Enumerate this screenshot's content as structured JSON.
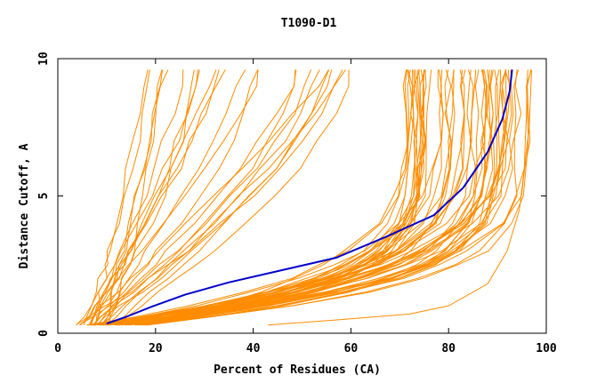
{
  "chart_data": {
    "type": "line",
    "title": "T1090-D1",
    "xlabel": "Percent of Residues (CA)",
    "ylabel": "Distance Cutoff, A",
    "xlim": [
      0,
      100
    ],
    "ylim": [
      0,
      10
    ],
    "xticks": [
      0,
      20,
      40,
      60,
      80,
      100
    ],
    "yticks": [
      0,
      5,
      10
    ],
    "grid": false,
    "legend": "none",
    "colors": {
      "background": "#ffffff",
      "axes": "#000000",
      "models": "#ff8c00",
      "highlight": "#0000cc"
    },
    "highlight_series": {
      "x": [
        10,
        14,
        19,
        26,
        35,
        46,
        57,
        67,
        77,
        83,
        88,
        91,
        92.5,
        93
      ],
      "y": [
        0.35,
        0.6,
        0.95,
        1.4,
        1.85,
        2.3,
        2.75,
        3.5,
        4.3,
        5.3,
        6.6,
        7.8,
        8.8,
        9.6
      ]
    },
    "series_groups": {
      "count": 80,
      "y": [
        0.3,
        0.6,
        1.0,
        1.5,
        2.0,
        2.5,
        3.0,
        4.0,
        5.0,
        6.0,
        7.0,
        8.0,
        9.0,
        9.6
      ],
      "cluster_low": {
        "count": 25,
        "x_start": [
          4,
          12
        ],
        "x_end": [
          16,
          60
        ],
        "shape": 1.3
      },
      "cluster_high": {
        "count": 54,
        "x_start": [
          6,
          18
        ],
        "x_end": [
          71,
          97
        ],
        "shape": 5.5
      },
      "outlier": {
        "x": [
          43,
          58,
          72,
          80,
          88,
          92,
          94.5,
          95.5,
          96.5,
          97
        ],
        "y": [
          0.3,
          0.5,
          0.7,
          1.0,
          1.8,
          3.0,
          4.5,
          6.0,
          7.5,
          9.6
        ]
      }
    }
  }
}
